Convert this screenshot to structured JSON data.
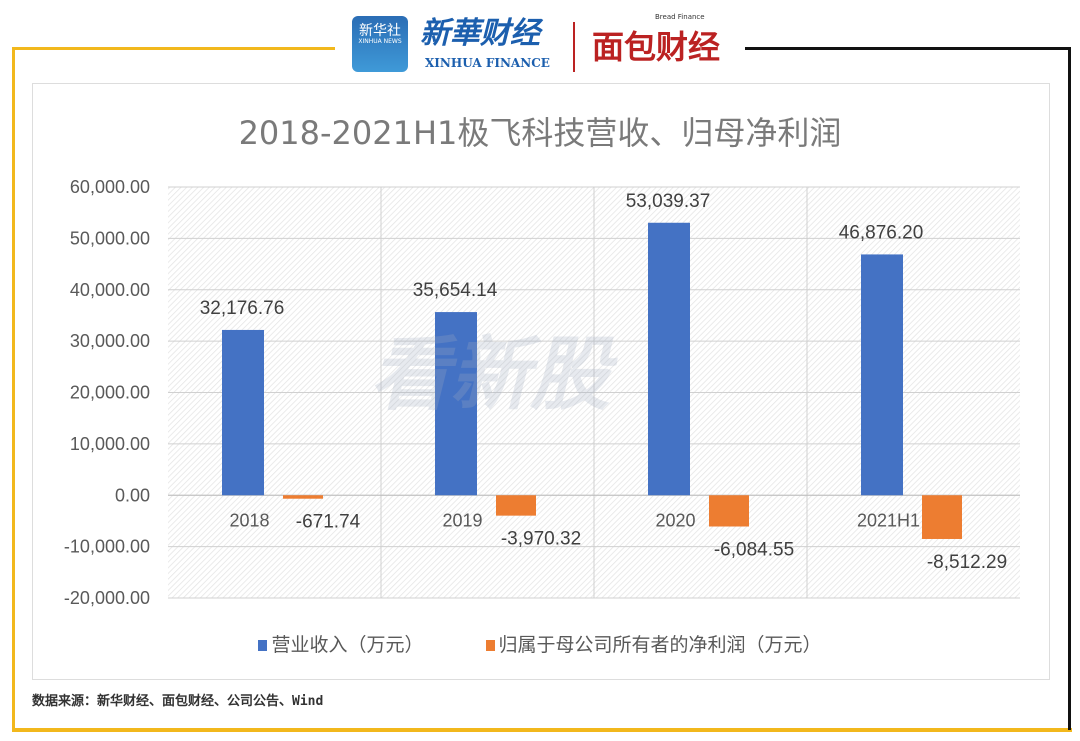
{
  "header": {
    "logo_xinhua_badge": "新华社",
    "logo_xinhua_badge_en": "XINHUA NEWS",
    "logo_xinhua_finance": "新華财经",
    "logo_xinhua_finance_en": "XINHUA FINANCE",
    "logo_bread": "面包财经",
    "logo_bread_en": "Bread Finance"
  },
  "watermark": "看新股",
  "chart_data": {
    "type": "bar",
    "title": "2018-2021H1极飞科技营收、归母净利润",
    "categories": [
      "2018",
      "2019",
      "2020",
      "2021H1"
    ],
    "series": [
      {
        "name": "营业收入（万元）",
        "color": "#4472c4",
        "values": [
          32176.76,
          35654.14,
          53039.37,
          46876.2
        ],
        "labels": [
          "32,176.76",
          "35,654.14",
          "53,039.37",
          "46,876.20"
        ]
      },
      {
        "name": "归属于母公司所有者的净利润（万元）",
        "color": "#ed7d31",
        "values": [
          -671.74,
          -3970.32,
          -6084.55,
          -8512.29
        ],
        "labels": [
          "-671.74",
          "-3,970.32",
          "-6,084.55",
          "-8,512.29"
        ]
      }
    ],
    "ylim": [
      -20000,
      60000
    ],
    "yticks": [
      "60,000.00",
      "50,000.00",
      "40,000.00",
      "30,000.00",
      "20,000.00",
      "10,000.00",
      "0.00",
      "-10,000.00",
      "-20,000.00"
    ],
    "grid": true,
    "legend": "bottom"
  },
  "source": "数据来源：新华财经、面包财经、公司公告、Wind"
}
